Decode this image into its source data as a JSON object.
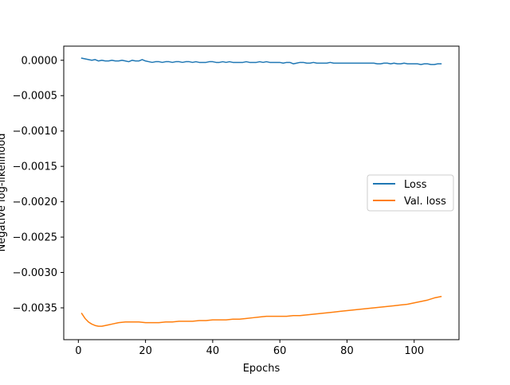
{
  "chart_data": {
    "type": "line",
    "title": "",
    "xlabel": "Epochs",
    "ylabel": "Negative log-likelihood",
    "xlim": [
      -4.35,
      113.35
    ],
    "ylim": [
      -0.00395,
      0.0002
    ],
    "xticks": [
      0,
      20,
      40,
      60,
      80,
      100
    ],
    "yticks": [
      0.0,
      -0.0005,
      -0.001,
      -0.0015,
      -0.002,
      -0.0025,
      -0.003,
      -0.0035
    ],
    "ytick_labels": [
      "0.0000",
      "−0.0005",
      "−0.0010",
      "−0.0015",
      "−0.0020",
      "−0.0025",
      "−0.0030",
      "−0.0035"
    ],
    "xtick_labels": [
      "0",
      "20",
      "40",
      "60",
      "80",
      "100"
    ],
    "grid": false,
    "legend": {
      "position": "center-right"
    },
    "series": [
      {
        "name": "Loss",
        "color": "#1f77b4",
        "points": [
          [
            1,
            3e-05
          ],
          [
            2,
            2e-05
          ],
          [
            3,
            1e-05
          ],
          [
            4,
            0.0
          ],
          [
            5,
            1e-05
          ],
          [
            6,
            -1e-05
          ],
          [
            7,
            0.0
          ],
          [
            8,
            -1e-05
          ],
          [
            9,
            -1e-05
          ],
          [
            10,
            0.0
          ],
          [
            11,
            -1e-05
          ],
          [
            12,
            -1e-05
          ],
          [
            13,
            0.0
          ],
          [
            14,
            -1e-05
          ],
          [
            15,
            -2e-05
          ],
          [
            16,
            0.0
          ],
          [
            17,
            -1e-05
          ],
          [
            18,
            -1e-05
          ],
          [
            19,
            1e-05
          ],
          [
            20,
            -1e-05
          ],
          [
            21,
            -2e-05
          ],
          [
            22,
            -3e-05
          ],
          [
            23,
            -2e-05
          ],
          [
            24,
            -2e-05
          ],
          [
            25,
            -3e-05
          ],
          [
            26,
            -2e-05
          ],
          [
            27,
            -2e-05
          ],
          [
            28,
            -3e-05
          ],
          [
            29,
            -2e-05
          ],
          [
            30,
            -2e-05
          ],
          [
            31,
            -3e-05
          ],
          [
            32,
            -2e-05
          ],
          [
            33,
            -2e-05
          ],
          [
            34,
            -3e-05
          ],
          [
            35,
            -2e-05
          ],
          [
            36,
            -3e-05
          ],
          [
            37,
            -3e-05
          ],
          [
            38,
            -3e-05
          ],
          [
            39,
            -2e-05
          ],
          [
            40,
            -2e-05
          ],
          [
            41,
            -3e-05
          ],
          [
            42,
            -3e-05
          ],
          [
            43,
            -2e-05
          ],
          [
            44,
            -3e-05
          ],
          [
            45,
            -2e-05
          ],
          [
            46,
            -3e-05
          ],
          [
            47,
            -3e-05
          ],
          [
            48,
            -3e-05
          ],
          [
            49,
            -3e-05
          ],
          [
            50,
            -2e-05
          ],
          [
            51,
            -3e-05
          ],
          [
            52,
            -3e-05
          ],
          [
            53,
            -3e-05
          ],
          [
            54,
            -2e-05
          ],
          [
            55,
            -3e-05
          ],
          [
            56,
            -2e-05
          ],
          [
            57,
            -3e-05
          ],
          [
            58,
            -3e-05
          ],
          [
            59,
            -3e-05
          ],
          [
            60,
            -3e-05
          ],
          [
            61,
            -4e-05
          ],
          [
            62,
            -3e-05
          ],
          [
            63,
            -3e-05
          ],
          [
            64,
            -5e-05
          ],
          [
            65,
            -4e-05
          ],
          [
            66,
            -3e-05
          ],
          [
            67,
            -3e-05
          ],
          [
            68,
            -4e-05
          ],
          [
            69,
            -4e-05
          ],
          [
            70,
            -3e-05
          ],
          [
            71,
            -4e-05
          ],
          [
            72,
            -4e-05
          ],
          [
            73,
            -4e-05
          ],
          [
            74,
            -4e-05
          ],
          [
            75,
            -3e-05
          ],
          [
            76,
            -4e-05
          ],
          [
            77,
            -4e-05
          ],
          [
            78,
            -4e-05
          ],
          [
            79,
            -4e-05
          ],
          [
            80,
            -4e-05
          ],
          [
            81,
            -4e-05
          ],
          [
            82,
            -4e-05
          ],
          [
            83,
            -4e-05
          ],
          [
            84,
            -4e-05
          ],
          [
            85,
            -4e-05
          ],
          [
            86,
            -4e-05
          ],
          [
            87,
            -4e-05
          ],
          [
            88,
            -4e-05
          ],
          [
            89,
            -5e-05
          ],
          [
            90,
            -5e-05
          ],
          [
            91,
            -4e-05
          ],
          [
            92,
            -4e-05
          ],
          [
            93,
            -5e-05
          ],
          [
            94,
            -4e-05
          ],
          [
            95,
            -5e-05
          ],
          [
            96,
            -5e-05
          ],
          [
            97,
            -4e-05
          ],
          [
            98,
            -5e-05
          ],
          [
            99,
            -5e-05
          ],
          [
            100,
            -5e-05
          ],
          [
            101,
            -5e-05
          ],
          [
            102,
            -6e-05
          ],
          [
            103,
            -5e-05
          ],
          [
            104,
            -5e-05
          ],
          [
            105,
            -6e-05
          ],
          [
            106,
            -6e-05
          ],
          [
            107,
            -5e-05
          ],
          [
            108,
            -5e-05
          ]
        ]
      },
      {
        "name": "Val. loss",
        "color": "#ff7f0e",
        "points": [
          [
            1,
            -0.00358
          ],
          [
            2,
            -0.00365
          ],
          [
            3,
            -0.0037
          ],
          [
            4,
            -0.00373
          ],
          [
            5,
            -0.00375
          ],
          [
            6,
            -0.00376
          ],
          [
            7,
            -0.00376
          ],
          [
            8,
            -0.00375
          ],
          [
            9,
            -0.00374
          ],
          [
            10,
            -0.00373
          ],
          [
            12,
            -0.00371
          ],
          [
            14,
            -0.0037
          ],
          [
            16,
            -0.0037
          ],
          [
            18,
            -0.0037
          ],
          [
            20,
            -0.00371
          ],
          [
            22,
            -0.00371
          ],
          [
            24,
            -0.00371
          ],
          [
            26,
            -0.0037
          ],
          [
            28,
            -0.0037
          ],
          [
            30,
            -0.00369
          ],
          [
            32,
            -0.00369
          ],
          [
            34,
            -0.00369
          ],
          [
            36,
            -0.00368
          ],
          [
            38,
            -0.00368
          ],
          [
            40,
            -0.00367
          ],
          [
            42,
            -0.00367
          ],
          [
            44,
            -0.00367
          ],
          [
            46,
            -0.00366
          ],
          [
            48,
            -0.00366
          ],
          [
            50,
            -0.00365
          ],
          [
            52,
            -0.00364
          ],
          [
            54,
            -0.00363
          ],
          [
            56,
            -0.00362
          ],
          [
            58,
            -0.00362
          ],
          [
            60,
            -0.00362
          ],
          [
            62,
            -0.00362
          ],
          [
            64,
            -0.00361
          ],
          [
            66,
            -0.00361
          ],
          [
            68,
            -0.0036
          ],
          [
            70,
            -0.00359
          ],
          [
            72,
            -0.00358
          ],
          [
            74,
            -0.00357
          ],
          [
            76,
            -0.00356
          ],
          [
            78,
            -0.00355
          ],
          [
            80,
            -0.00354
          ],
          [
            82,
            -0.00353
          ],
          [
            84,
            -0.00352
          ],
          [
            86,
            -0.00351
          ],
          [
            88,
            -0.0035
          ],
          [
            90,
            -0.00349
          ],
          [
            92,
            -0.00348
          ],
          [
            94,
            -0.00347
          ],
          [
            96,
            -0.00346
          ],
          [
            98,
            -0.00345
          ],
          [
            100,
            -0.00343
          ],
          [
            102,
            -0.00341
          ],
          [
            104,
            -0.00339
          ],
          [
            106,
            -0.00336
          ],
          [
            108,
            -0.00334
          ]
        ]
      }
    ]
  }
}
